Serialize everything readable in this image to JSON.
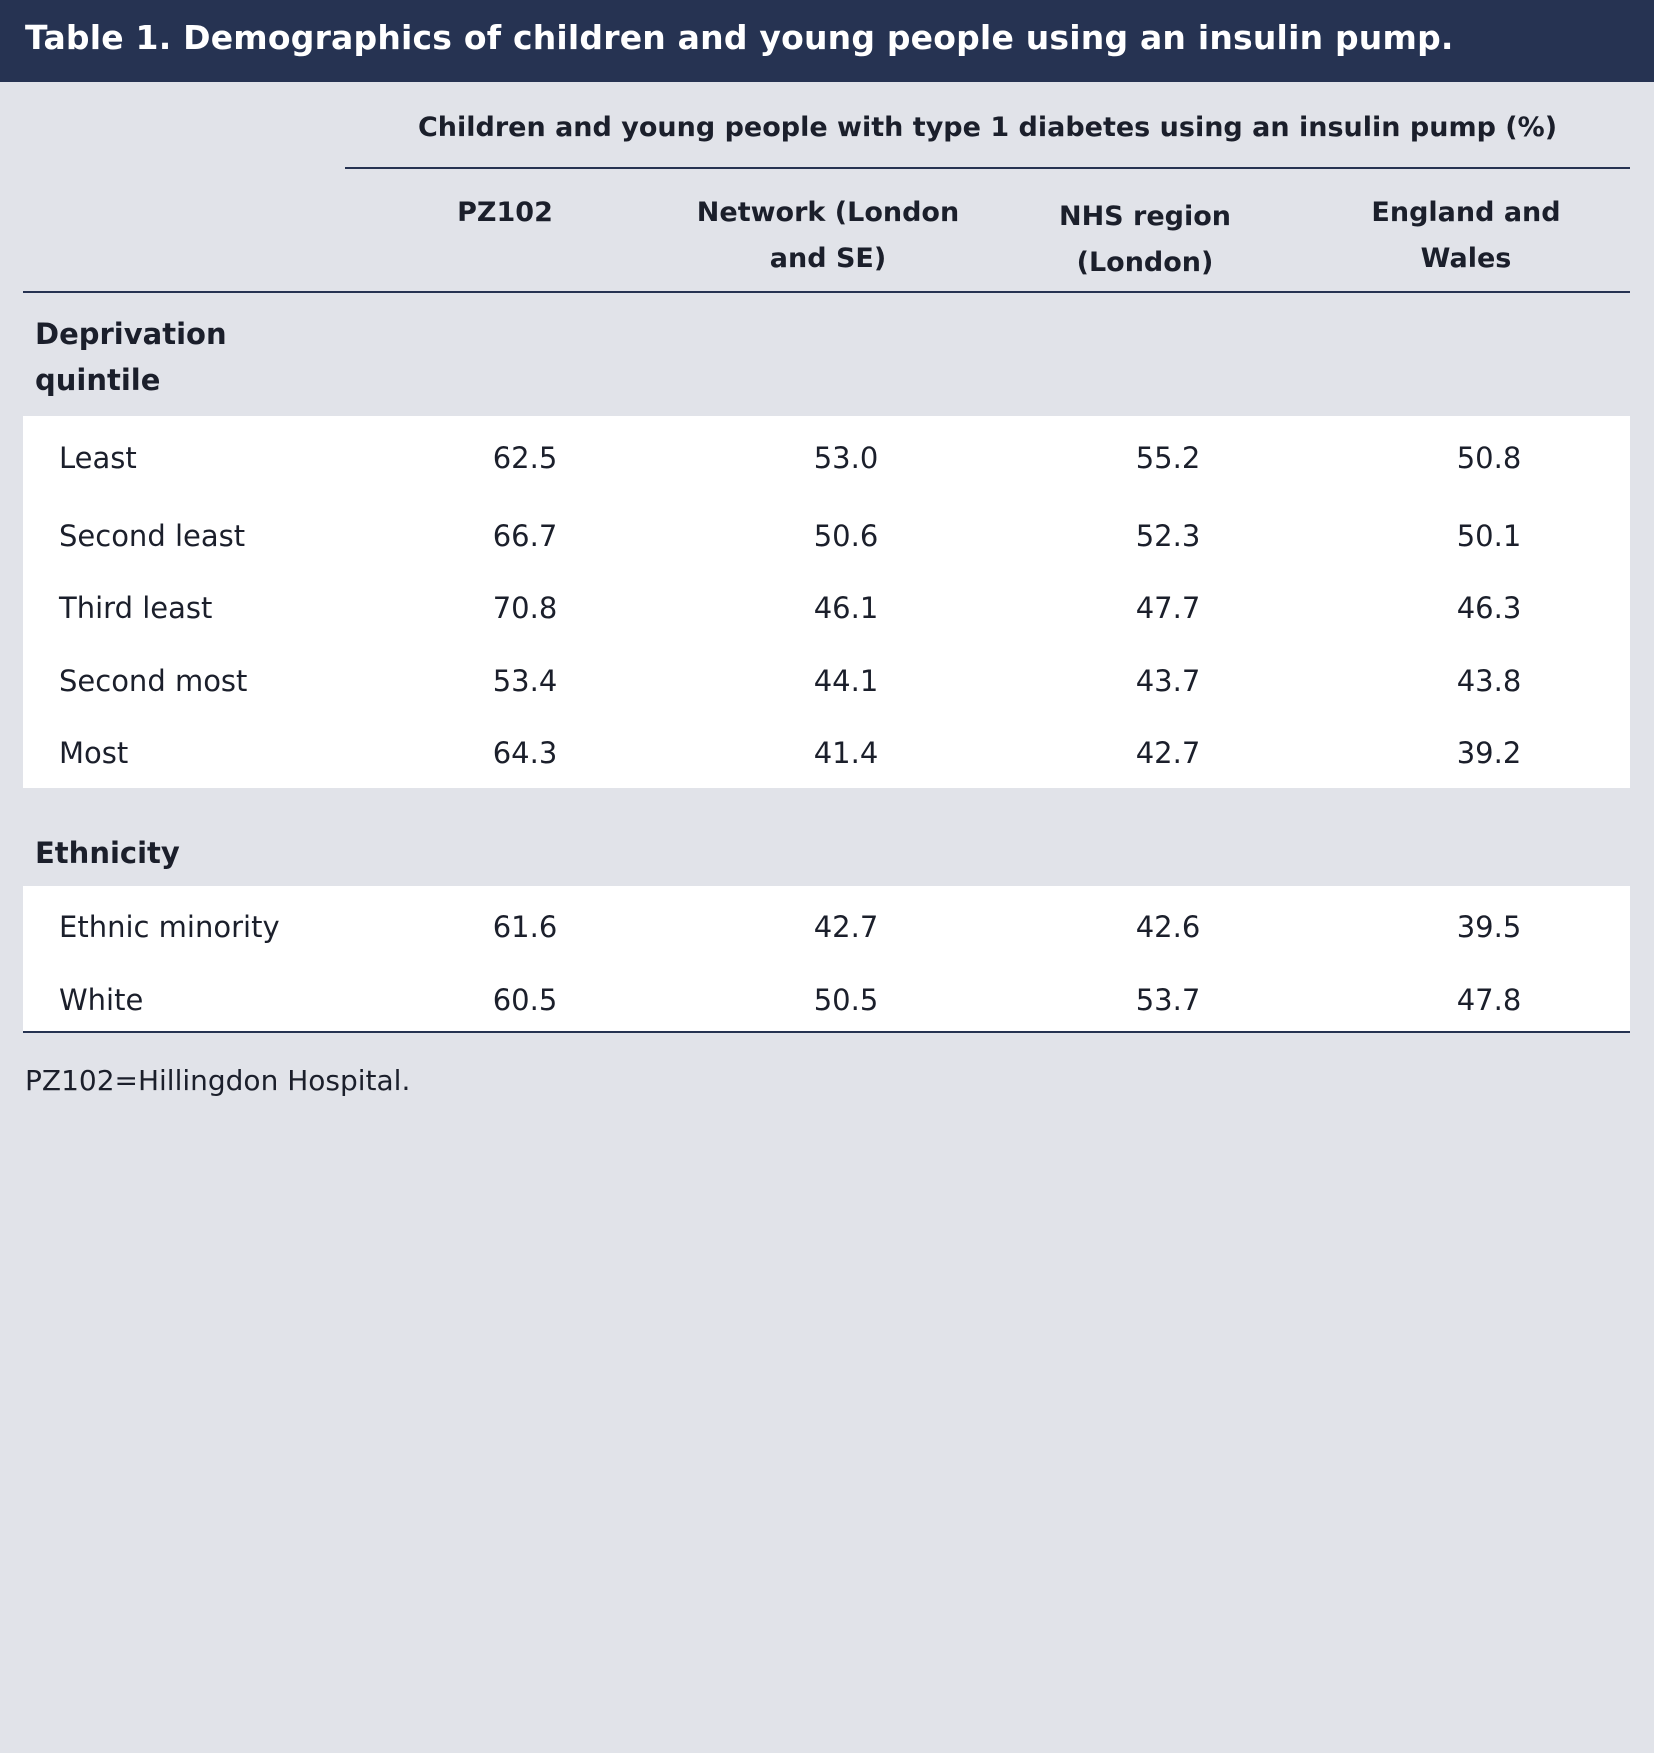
{
  "title": "Table 1. Demographics of children and young people using an insulin pump.",
  "table": {
    "superheader": "Children and young people with type 1 diabetes using an insulin pump (%)",
    "columns": [
      {
        "line1": "PZ102",
        "line2": ""
      },
      {
        "line1": "Network (London",
        "line2": "and SE)"
      },
      {
        "line1": "NHS region",
        "line2": "(London)"
      },
      {
        "line1": "England and",
        "line2": "Wales"
      }
    ],
    "sections": [
      {
        "label_line1": "Deprivation",
        "label_line2": "quintile",
        "rows": [
          {
            "label": "Least",
            "values": [
              "62.5",
              "53.0",
              "55.2",
              "50.8"
            ]
          },
          {
            "label": "Second least",
            "values": [
              "66.7",
              "50.6",
              "52.3",
              "50.1"
            ]
          },
          {
            "label": "Third least",
            "values": [
              "70.8",
              "46.1",
              "47.7",
              "46.3"
            ]
          },
          {
            "label": "Second most",
            "values": [
              "53.4",
              "44.1",
              "43.7",
              "43.8"
            ]
          },
          {
            "label": "Most",
            "values": [
              "64.3",
              "41.4",
              "42.7",
              "39.2"
            ]
          }
        ]
      },
      {
        "label_line1": "Ethnicity",
        "label_line2": "",
        "rows": [
          {
            "label": "Ethnic minority",
            "values": [
              "61.6",
              "42.7",
              "42.6",
              "39.5"
            ]
          },
          {
            "label": "White",
            "values": [
              "60.5",
              "50.5",
              "53.7",
              "47.8"
            ]
          }
        ]
      }
    ]
  },
  "footnote": "PZ102=Hillingdon Hospital.",
  "colors": {
    "title_bar": "#263352",
    "background": "#e1e3e9",
    "panel": "#ffffff",
    "rule": "#263352"
  }
}
